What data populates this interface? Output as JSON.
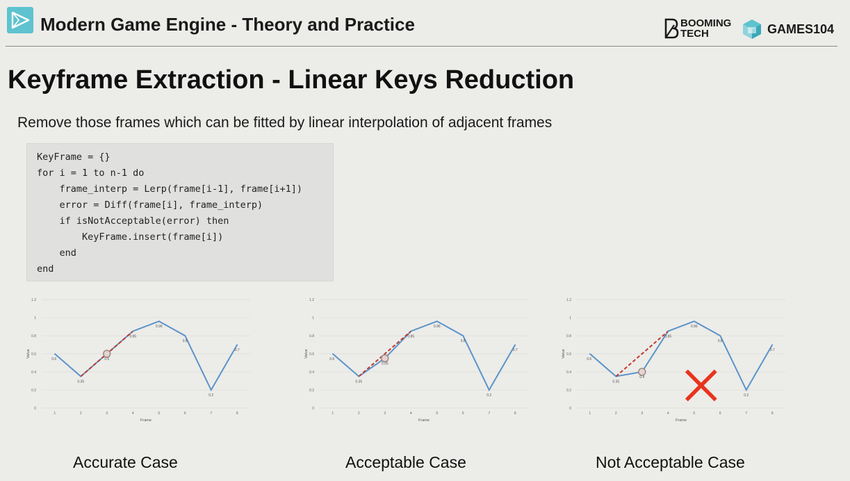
{
  "header": {
    "course_title": "Modern Game Engine - Theory and Practice",
    "brand_booming_line1": "BOOMING",
    "brand_booming_line2": "TECH",
    "brand_games": "GAMES104"
  },
  "slide": {
    "title": "Keyframe Extraction - Linear Keys Reduction",
    "subtitle": "Remove those frames which can be fitted by linear interpolation of adjacent frames"
  },
  "code": [
    "KeyFrame = {}",
    "for i = 1 to n-1 do",
    "    frame_interp = Lerp(frame[i-1], frame[i+1])",
    "    error = Diff(frame[i], frame_interp)",
    "    if isNotAcceptable(error) then",
    "        KeyFrame.insert(frame[i])",
    "    end",
    "end"
  ],
  "captions": [
    "Accurate Case",
    "Acceptable Case",
    "Not Acceptable Case"
  ],
  "colors": {
    "line": "#5b93c9",
    "dashed": "#c0392b",
    "cross": "#e8341c",
    "logo": "#5ec3cf"
  },
  "chart_data": [
    {
      "type": "line",
      "x": [
        1,
        2,
        3,
        4,
        5,
        6,
        7,
        8
      ],
      "y": [
        0.6,
        0.35,
        0.6,
        0.85,
        0.96,
        0.8,
        0.2,
        0.7
      ],
      "labels": [
        "0.6",
        "0.35",
        "0.6",
        "0.85",
        "0.96",
        "0.8",
        "0.2",
        "0.7"
      ],
      "xlabel": "Frame",
      "ylabel": "Value",
      "ylim": [
        0,
        1.2
      ],
      "yticks": [
        "0",
        "0.2",
        "0.4",
        "0.6",
        "0.8",
        "1",
        "1.2"
      ],
      "circle_index": 2,
      "interp_from": 1,
      "interp_to": 3,
      "cross": false
    },
    {
      "type": "line",
      "x": [
        1,
        2,
        3,
        4,
        5,
        6,
        7,
        8
      ],
      "y": [
        0.6,
        0.35,
        0.55,
        0.85,
        0.96,
        0.8,
        0.2,
        0.7
      ],
      "labels": [
        "0.6",
        "0.35",
        "0.55",
        "0.85",
        "0.96",
        "0.8",
        "0.2",
        "0.7"
      ],
      "xlabel": "Frame",
      "ylabel": "Value",
      "ylim": [
        0,
        1.2
      ],
      "yticks": [
        "0",
        "0.2",
        "0.4",
        "0.6",
        "0.8",
        "1",
        "1.2"
      ],
      "circle_index": 2,
      "interp_from": 1,
      "interp_to": 3,
      "cross": false
    },
    {
      "type": "line",
      "x": [
        1,
        2,
        3,
        4,
        5,
        6,
        7,
        8
      ],
      "y": [
        0.6,
        0.35,
        0.4,
        0.85,
        0.96,
        0.8,
        0.2,
        0.7
      ],
      "labels": [
        "0.6",
        "0.35",
        "0.4",
        "0.85",
        "0.96",
        "0.8",
        "0.2",
        "0.7"
      ],
      "xlabel": "Frame",
      "ylabel": "Value",
      "ylim": [
        0,
        1.2
      ],
      "yticks": [
        "0",
        "0.2",
        "0.4",
        "0.6",
        "0.8",
        "1",
        "1.2"
      ],
      "circle_index": 2,
      "interp_from": 1,
      "interp_to": 3,
      "cross": true
    }
  ]
}
